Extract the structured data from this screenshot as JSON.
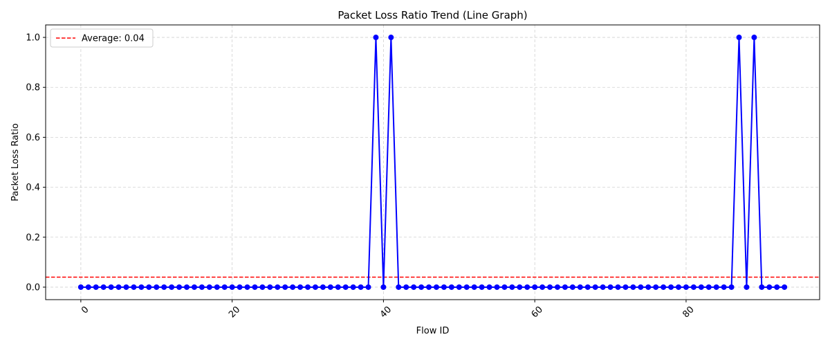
{
  "chart_data": {
    "type": "line",
    "title": "Packet Loss Ratio Trend (Line Graph)",
    "xlabel": "Flow ID",
    "ylabel": "Packet Loss Ratio",
    "xlim": [
      -4.65,
      97.65
    ],
    "ylim": [
      -0.05,
      1.05
    ],
    "xticks": [
      0,
      20,
      40,
      60,
      80
    ],
    "xtick_labels": [
      "0",
      "20",
      "40",
      "60",
      "80"
    ],
    "yticks": [
      0.0,
      0.2,
      0.4,
      0.6,
      0.8,
      1.0
    ],
    "ytick_labels": [
      "0.0",
      "0.2",
      "0.4",
      "0.6",
      "0.8",
      "1.0"
    ],
    "grid": true,
    "legend_position": "upper-left",
    "series": [
      {
        "color": "#0000ff",
        "marker": "circle",
        "x": [
          0,
          1,
          2,
          3,
          4,
          5,
          6,
          7,
          8,
          9,
          10,
          11,
          12,
          13,
          14,
          15,
          16,
          17,
          18,
          19,
          20,
          21,
          22,
          23,
          24,
          25,
          26,
          27,
          28,
          29,
          30,
          31,
          32,
          33,
          34,
          35,
          36,
          37,
          38,
          39,
          40,
          41,
          42,
          43,
          44,
          45,
          46,
          47,
          48,
          49,
          50,
          51,
          52,
          53,
          54,
          55,
          56,
          57,
          58,
          59,
          60,
          61,
          62,
          63,
          64,
          65,
          66,
          67,
          68,
          69,
          70,
          71,
          72,
          73,
          74,
          75,
          76,
          77,
          78,
          79,
          80,
          81,
          82,
          83,
          84,
          85,
          86,
          87,
          88,
          89,
          90,
          91,
          92,
          93
        ],
        "values": [
          0,
          0,
          0,
          0,
          0,
          0,
          0,
          0,
          0,
          0,
          0,
          0,
          0,
          0,
          0,
          0,
          0,
          0,
          0,
          0,
          0,
          0,
          0,
          0,
          0,
          0,
          0,
          0,
          0,
          0,
          0,
          0,
          0,
          0,
          0,
          0,
          0,
          0,
          0,
          1,
          0,
          1,
          0,
          0,
          0,
          0,
          0,
          0,
          0,
          0,
          0,
          0,
          0,
          0,
          0,
          0,
          0,
          0,
          0,
          0,
          0,
          0,
          0,
          0,
          0,
          0,
          0,
          0,
          0,
          0,
          0,
          0,
          0,
          0,
          0,
          0,
          0,
          0,
          0,
          0,
          0,
          0,
          0,
          0,
          0,
          0,
          0,
          1,
          0,
          1,
          0,
          0,
          0,
          0
        ]
      }
    ],
    "reference_line": {
      "name": "Average: 0.04",
      "value": 0.04,
      "color": "#ff0000",
      "style": "dashed"
    }
  }
}
